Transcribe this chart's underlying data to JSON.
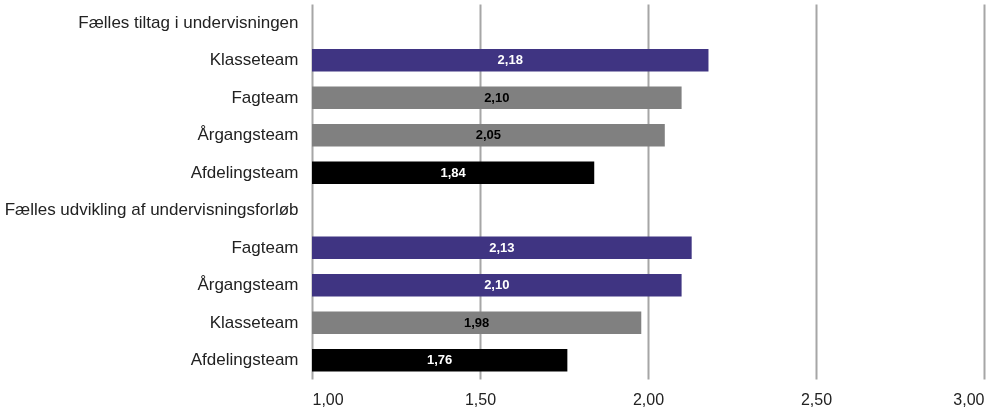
{
  "chart_data": {
    "type": "bar",
    "orientation": "horizontal",
    "categories": [
      "Fælles tiltag i undervisningen",
      "Klasseteam",
      "Fagteam",
      "Årgangsteam",
      "Afdelingsteam",
      "Fælles udvikling af undervisningsforløb",
      "Fagteam",
      "Årgangsteam",
      "Klasseteam",
      "Afdelingsteam"
    ],
    "values": [
      null,
      2.18,
      2.1,
      2.05,
      1.84,
      null,
      2.13,
      2.1,
      1.98,
      1.76
    ],
    "colors": [
      null,
      "#3f3482",
      "#808080",
      "#808080",
      "#000000",
      null,
      "#3f3482",
      "#3f3482",
      "#808080",
      "#000000"
    ],
    "value_labels": [
      null,
      "2,18",
      "2,10",
      "2,05",
      "1,84",
      null,
      "2,13",
      "2,10",
      "1,98",
      "1,76"
    ],
    "xlim": [
      1,
      3
    ],
    "xticks": [
      {
        "value": 1,
        "label": "1,00"
      },
      {
        "value": 1.5,
        "label": "1,50"
      },
      {
        "value": 2,
        "label": "2,00"
      },
      {
        "value": 2.5,
        "label": "2,50"
      },
      {
        "value": 3,
        "label": "3,00"
      }
    ],
    "grid": "x"
  }
}
